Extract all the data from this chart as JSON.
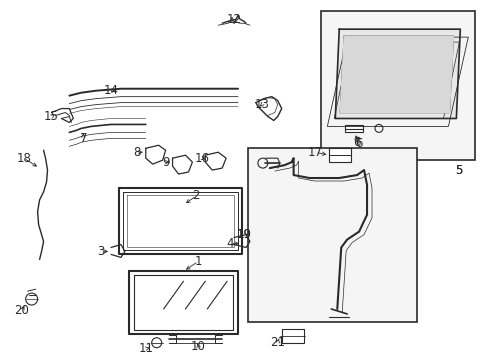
{
  "bg_color": "#ffffff",
  "line_color": "#2a2a2a",
  "font_size": 8.5,
  "fig_width": 4.89,
  "fig_height": 3.6,
  "dpi": 100
}
